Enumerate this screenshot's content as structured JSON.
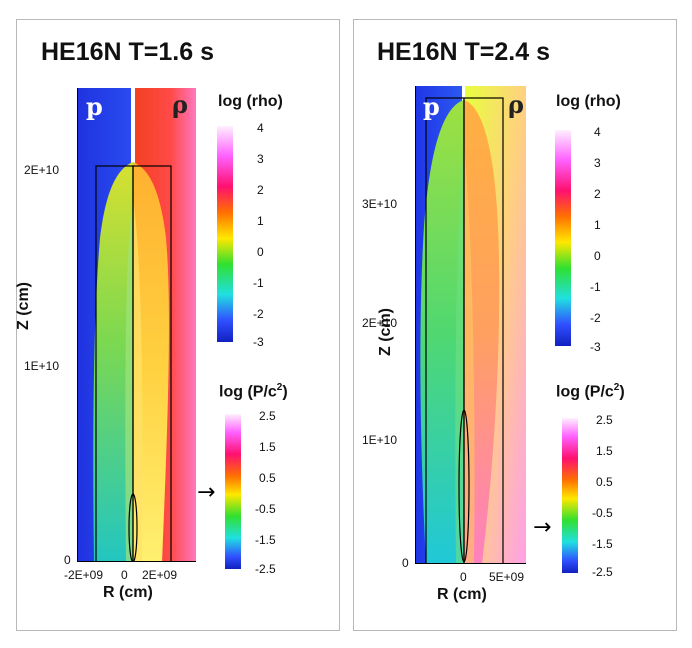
{
  "figure": {
    "panels": [
      {
        "title": "HE16N T=1.6 s",
        "corner_left": "p",
        "corner_right": "ρ",
        "y_axis_label": "Z (cm)",
        "x_axis_label": "R (cm)",
        "y_ticks": [
          "0",
          "1E+10",
          "2E+10"
        ],
        "x_ticks": [
          "-2E+09",
          "0",
          "2E+09"
        ],
        "cbar_rho_title": "log (rho)",
        "cbar_rho_ticks": [
          "4",
          "3",
          "2",
          "1",
          "0",
          "-1",
          "-2",
          "-3"
        ],
        "cbar_p_title": "log (P/c",
        "cbar_p_sup": "2",
        "cbar_p_close": ")",
        "cbar_p_ticks": [
          "2.5",
          "1.5",
          "0.5",
          "-0.5",
          "-1.5",
          "-2.5"
        ],
        "arrow": "→"
      },
      {
        "title": "HE16N T=2.4 s",
        "corner_left": "p",
        "corner_right": "ρ",
        "y_axis_label": "Z (cm)",
        "x_axis_label": "R (cm)",
        "y_ticks": [
          "0",
          "1E+10",
          "2E+10",
          "3E+10"
        ],
        "x_ticks": [
          "0",
          "5E+09"
        ],
        "cbar_rho_title": "log (rho)",
        "cbar_rho_ticks": [
          "4",
          "3",
          "2",
          "1",
          "0",
          "-1",
          "-2",
          "-3"
        ],
        "cbar_p_title": "log (P/c",
        "cbar_p_sup": "2",
        "cbar_p_close": ")",
        "cbar_p_ticks": [
          "2.5",
          "1.5",
          "0.5",
          "-0.5",
          "-1.5",
          "-2.5"
        ],
        "arrow": "→"
      }
    ]
  }
}
